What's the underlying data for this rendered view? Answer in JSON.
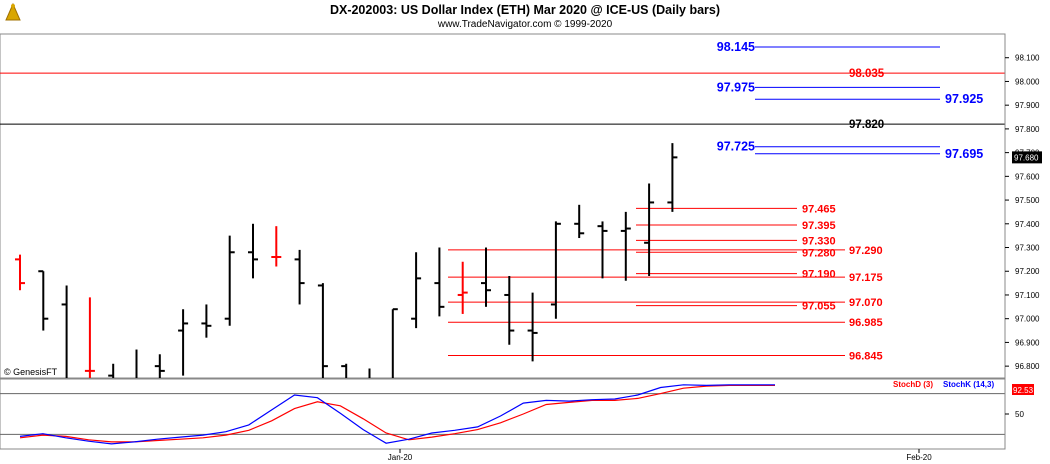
{
  "header": {
    "title": "DX-202003:  US Dollar Index (ETH) Mar 2020 @ ICE-US  (Daily bars)",
    "subtitle": "www.TradeNavigator.com © 1999-2020"
  },
  "watermark": "© GenesisFT",
  "colors": {
    "blue": "#0000ff",
    "red": "#ff0000",
    "black": "#000000",
    "bar_black": "#000000",
    "bar_red": "#ff0000",
    "stoch_d": "#ff0000",
    "stoch_k": "#0000ff"
  },
  "chart_data": [
    {
      "type": "ohlc",
      "ylim": [
        96.75,
        98.2
      ],
      "yticks": [
        "98.100",
        "98.000",
        "97.900",
        "97.800",
        "97.700",
        "97.600",
        "97.500",
        "97.400",
        "97.300",
        "97.200",
        "97.100",
        "97.000",
        "96.900",
        "96.800"
      ],
      "last_price": "97.680",
      "xticks": [
        "Jan-20",
        "Feb-20"
      ],
      "bars": [
        {
          "o": 97.25,
          "h": 97.27,
          "l": 97.12,
          "c": 97.15,
          "color": "red"
        },
        {
          "o": 97.2,
          "h": 97.2,
          "l": 96.95,
          "c": 97.0,
          "color": "black"
        },
        {
          "o": 97.06,
          "h": 97.14,
          "l": 96.7,
          "c": 96.75,
          "color": "black"
        },
        {
          "o": 96.78,
          "h": 97.09,
          "l": 96.65,
          "c": 96.78,
          "color": "red"
        },
        {
          "o": 96.76,
          "h": 96.81,
          "l": 96.55,
          "c": 96.58,
          "color": "black"
        },
        {
          "o": 96.74,
          "h": 96.87,
          "l": 96.6,
          "c": 96.66,
          "color": "black"
        },
        {
          "o": 96.8,
          "h": 96.85,
          "l": 96.6,
          "c": 96.78,
          "color": "black"
        },
        {
          "o": 96.95,
          "h": 97.04,
          "l": 96.76,
          "c": 96.98,
          "color": "black"
        },
        {
          "o": 96.98,
          "h": 97.06,
          "l": 96.92,
          "c": 96.97,
          "color": "black"
        },
        {
          "o": 97.0,
          "h": 97.35,
          "l": 96.97,
          "c": 97.28,
          "color": "black"
        },
        {
          "o": 97.28,
          "h": 97.4,
          "l": 97.17,
          "c": 97.25,
          "color": "black"
        },
        {
          "o": 97.26,
          "h": 97.39,
          "l": 97.22,
          "c": 97.26,
          "color": "red"
        },
        {
          "o": 97.25,
          "h": 97.29,
          "l": 97.06,
          "c": 97.15,
          "color": "black"
        },
        {
          "o": 97.14,
          "h": 97.15,
          "l": 96.75,
          "c": 96.8,
          "color": "black"
        },
        {
          "o": 96.8,
          "h": 96.81,
          "l": 96.62,
          "c": 96.7,
          "color": "black"
        },
        {
          "o": 96.72,
          "h": 96.79,
          "l": 96.6,
          "c": 96.75,
          "color": "black"
        },
        {
          "o": 96.74,
          "h": 97.04,
          "l": 96.7,
          "c": 97.04,
          "color": "black"
        },
        {
          "o": 97.0,
          "h": 97.28,
          "l": 96.96,
          "c": 97.17,
          "color": "black"
        },
        {
          "o": 97.15,
          "h": 97.3,
          "l": 97.01,
          "c": 97.05,
          "color": "black"
        },
        {
          "o": 97.1,
          "h": 97.24,
          "l": 97.02,
          "c": 97.11,
          "color": "red"
        },
        {
          "o": 97.15,
          "h": 97.3,
          "l": 97.05,
          "c": 97.12,
          "color": "black"
        },
        {
          "o": 97.1,
          "h": 97.18,
          "l": 96.89,
          "c": 96.95,
          "color": "black"
        },
        {
          "o": 96.95,
          "h": 97.11,
          "l": 96.82,
          "c": 96.94,
          "color": "black"
        },
        {
          "o": 97.06,
          "h": 97.41,
          "l": 97.0,
          "c": 97.4,
          "color": "black"
        },
        {
          "o": 97.4,
          "h": 97.48,
          "l": 97.34,
          "c": 97.36,
          "color": "black"
        },
        {
          "o": 97.39,
          "h": 97.41,
          "l": 97.17,
          "c": 97.37,
          "color": "black"
        },
        {
          "o": 97.37,
          "h": 97.45,
          "l": 97.16,
          "c": 97.38,
          "color": "black"
        },
        {
          "o": 97.32,
          "h": 97.57,
          "l": 97.18,
          "c": 97.49,
          "color": "black"
        },
        {
          "o": 97.49,
          "h": 97.74,
          "l": 97.45,
          "c": 97.68,
          "color": "black"
        }
      ],
      "levels": [
        {
          "value": 98.145,
          "label": "98.145",
          "color": "blue",
          "span": "lower-right",
          "label_pos": "left"
        },
        {
          "value": 98.035,
          "label": "98.035",
          "color": "red",
          "span": "full",
          "label_pos": "mid"
        },
        {
          "value": 97.975,
          "label": "97.975",
          "color": "blue",
          "span": "lower-right",
          "label_pos": "left"
        },
        {
          "value": 97.925,
          "label": "97.925",
          "color": "blue",
          "span": "right",
          "label_pos": "right"
        },
        {
          "value": 97.82,
          "label": "97.820",
          "color": "black",
          "span": "full",
          "label_pos": "mid"
        },
        {
          "value": 97.725,
          "label": "97.725",
          "color": "blue",
          "span": "lower-right",
          "label_pos": "left"
        },
        {
          "value": 97.695,
          "label": "97.695",
          "color": "blue",
          "span": "right",
          "label_pos": "right"
        },
        {
          "value": 97.465,
          "label": "97.465",
          "color": "red",
          "span": "cluster",
          "label_pos": "cluster"
        },
        {
          "value": 97.395,
          "label": "97.395",
          "color": "red",
          "span": "cluster",
          "label_pos": "cluster"
        },
        {
          "value": 97.33,
          "label": "97.330",
          "color": "red",
          "span": "cluster",
          "label_pos": "cluster"
        },
        {
          "value": 97.29,
          "label": "97.290",
          "color": "red",
          "span": "wide",
          "label_pos": "wide"
        },
        {
          "value": 97.28,
          "label": "97.280",
          "color": "red",
          "span": "cluster",
          "label_pos": "cluster"
        },
        {
          "value": 97.19,
          "label": "97.190",
          "color": "red",
          "span": "cluster",
          "label_pos": "cluster"
        },
        {
          "value": 97.175,
          "label": "97.175",
          "color": "red",
          "span": "wide",
          "label_pos": "wide"
        },
        {
          "value": 97.07,
          "label": "97.070",
          "color": "red",
          "span": "wide",
          "label_pos": "wide"
        },
        {
          "value": 97.055,
          "label": "97.055",
          "color": "red",
          "span": "cluster",
          "label_pos": "cluster"
        },
        {
          "value": 96.985,
          "label": "96.985",
          "color": "red",
          "span": "wide",
          "label_pos": "wide"
        },
        {
          "value": 96.845,
          "label": "96.845",
          "color": "red",
          "span": "wide",
          "label_pos": "wide"
        }
      ]
    },
    {
      "type": "line",
      "ylim": [
        0,
        100
      ],
      "yticks": [
        "50"
      ],
      "legend": [
        "StochD (3)",
        "StochK (14,3)"
      ],
      "last_value": "92.53",
      "series": [
        {
          "name": "StochD (3)",
          "color": "red",
          "values": [
            15,
            19,
            17,
            12,
            9,
            9,
            11,
            13,
            15,
            19,
            26,
            40,
            58,
            68,
            62,
            43,
            22,
            12,
            16,
            21,
            27,
            37,
            50,
            64,
            67,
            70,
            70,
            73,
            80,
            88,
            91,
            92,
            92,
            92
          ]
        },
        {
          "name": "StochK (14,3)",
          "color": "blue",
          "values": [
            17,
            21,
            15,
            10,
            6,
            9,
            13,
            16,
            19,
            24,
            34,
            56,
            78,
            74,
            51,
            27,
            7,
            13,
            22,
            26,
            31,
            47,
            66,
            70,
            69,
            71,
            72,
            78,
            89,
            93,
            92,
            93,
            93,
            93
          ]
        }
      ]
    }
  ]
}
